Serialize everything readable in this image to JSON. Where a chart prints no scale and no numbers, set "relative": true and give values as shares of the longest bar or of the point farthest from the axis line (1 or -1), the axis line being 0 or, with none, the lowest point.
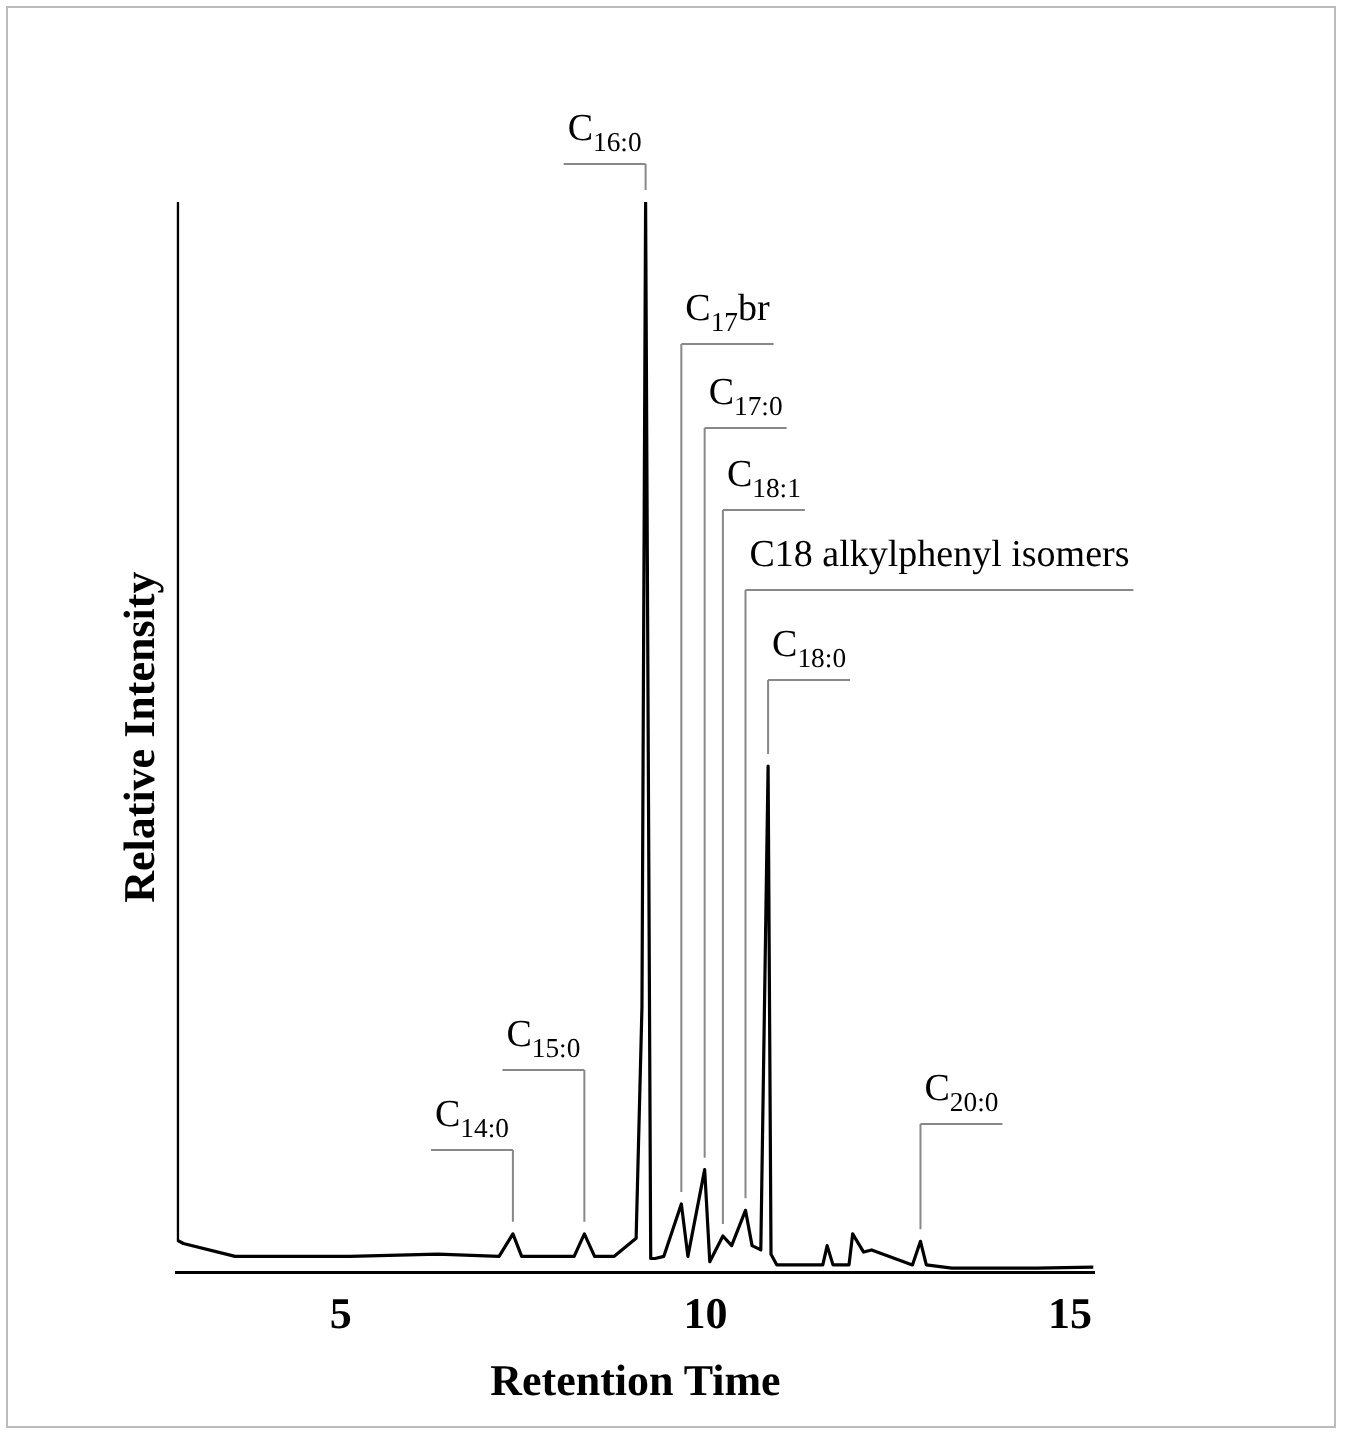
{
  "chart_data": {
    "type": "line",
    "relative": true,
    "xlabel": "Retention Time",
    "ylabel": "Relative Intensity",
    "xlim": [
      2.75,
      15.33
    ],
    "xticks": [
      5,
      10,
      15
    ],
    "grid": false,
    "legend": false,
    "marker": "none",
    "line_style": "solid",
    "tick_labels": "x",
    "series": [
      {
        "color": "#000000",
        "x": [
          2.75,
          2.76,
          2.84,
          3.55,
          5.12,
          6.33,
          7.17,
          7.36,
          7.48,
          8.2,
          8.34,
          8.48,
          8.75,
          9.05,
          9.13,
          9.18,
          9.25,
          9.31,
          9.43,
          9.67,
          9.76,
          9.99,
          10.06,
          10.24,
          10.36,
          10.55,
          10.64,
          10.76,
          10.86,
          10.9,
          10.98,
          11.61,
          11.67,
          11.75,
          11.97,
          12.02,
          12.17,
          12.28,
          12.84,
          12.95,
          13.03,
          13.38,
          14.54,
          15.32
        ],
        "values": [
          1,
          0.03,
          0.027,
          0.015,
          0.015,
          0.017,
          0.015,
          0.036,
          0.015,
          0.015,
          0.036,
          0.015,
          0.015,
          0.032,
          0.248,
          1,
          0.013,
          0.013,
          0.015,
          0.064,
          0.015,
          0.096,
          0.01,
          0.034,
          0.025,
          0.058,
          0.025,
          0.021,
          0.473,
          0.017,
          0.007,
          0.007,
          0.025,
          0.007,
          0.007,
          0.036,
          0.019,
          0.021,
          0.007,
          0.029,
          0.007,
          0.004,
          0.004,
          0.005
        ]
      }
    ],
    "annotations": [
      {
        "text": "C$_{14:0}$",
        "x": 7.36,
        "y": 0.036
      },
      {
        "text": "C$_{15:0}$",
        "x": 8.34,
        "y": 0.036
      },
      {
        "text": "C$_{16:0}$",
        "x": 9.18,
        "y": 1
      },
      {
        "text": "C$_{17}$br",
        "x": 9.67,
        "y": 0.064
      },
      {
        "text": "C$_{17:0}$",
        "x": 9.99,
        "y": 0.096
      },
      {
        "text": "C$_{18:1}$",
        "x": 10.24,
        "y": 0.034
      },
      {
        "text": "C18 alkylphenyl isomers",
        "x": 10.55,
        "y": 0.058
      },
      {
        "text": "C$_{18:0}$",
        "x": 10.86,
        "y": 0.473
      },
      {
        "text": "C$_{20:0}$",
        "x": 12.95,
        "y": 0.029
      }
    ]
  }
}
